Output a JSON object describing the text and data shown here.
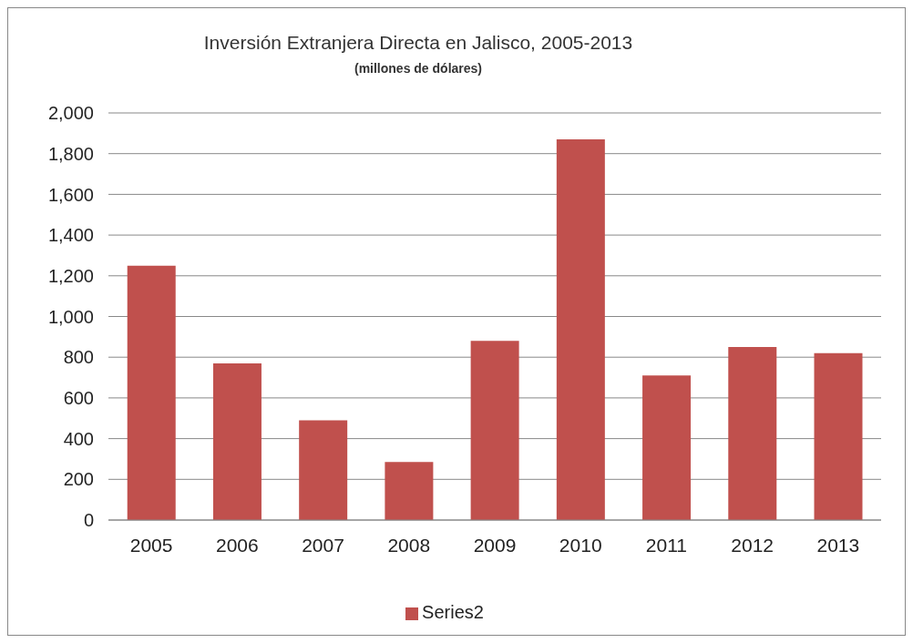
{
  "chart_data": {
    "type": "bar",
    "title": "Inversión Extranjera Directa en Jalisco, 2005-2013",
    "subtitle": "(millones de dólares)",
    "categories": [
      "2005",
      "2006",
      "2007",
      "2008",
      "2009",
      "2010",
      "2011",
      "2012",
      "2013"
    ],
    "series": [
      {
        "name": "Series2",
        "color": "#c0504d",
        "values": [
          1250,
          770,
          490,
          285,
          880,
          1870,
          710,
          850,
          820
        ]
      }
    ],
    "ylim": [
      0,
      2000
    ],
    "yticks": [
      {
        "value": 0,
        "label": "0"
      },
      {
        "value": 200,
        "label": "200"
      },
      {
        "value": 400,
        "label": "400"
      },
      {
        "value": 600,
        "label": "600"
      },
      {
        "value": 800,
        "label": "800"
      },
      {
        "value": 1000,
        "label": "1,000"
      },
      {
        "value": 1200,
        "label": "1,200"
      },
      {
        "value": 1400,
        "label": "1,400"
      },
      {
        "value": 1600,
        "label": "1,600"
      },
      {
        "value": 1800,
        "label": "1,800"
      },
      {
        "value": 2000,
        "label": "2,000"
      }
    ],
    "grid": "y",
    "legend": "bottom"
  }
}
